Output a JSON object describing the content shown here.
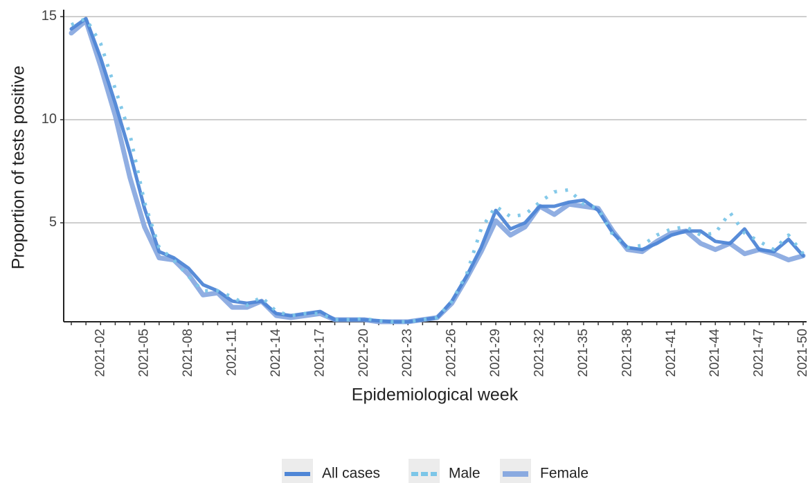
{
  "chart_data": {
    "type": "line",
    "x_label": "Epidemiological week",
    "y_label": "Proportion of tests positive",
    "categories": [
      null,
      null,
      "2021-02",
      null,
      null,
      "2021-05",
      null,
      null,
      "2021-08",
      null,
      null,
      "2021-11",
      null,
      null,
      "2021-14",
      null,
      null,
      "2021-17",
      null,
      null,
      "2021-20",
      null,
      null,
      "2021-23",
      null,
      null,
      "2021-26",
      null,
      null,
      "2021-29",
      null,
      null,
      "2021-32",
      null,
      null,
      "2021-35",
      null,
      null,
      "2021-38",
      null,
      null,
      "2021-41",
      null,
      null,
      "2021-44",
      null,
      null,
      "2021-47",
      null,
      null,
      "2021-50"
    ],
    "series": [
      {
        "name": "All cases",
        "color": "#4f86d6",
        "linestyle": "solid",
        "values": [
          14.4,
          14.9,
          13.0,
          10.8,
          8.4,
          5.7,
          3.6,
          3.3,
          2.8,
          2.0,
          1.7,
          1.2,
          1.1,
          1.2,
          0.6,
          0.5,
          0.6,
          0.7,
          0.3,
          0.3,
          0.3,
          0.25,
          0.2,
          0.2,
          0.3,
          0.4,
          1.2,
          2.4,
          3.8,
          5.6,
          4.7,
          5.0,
          5.8,
          5.8,
          6.0,
          6.1,
          5.6,
          4.5,
          3.8,
          3.7,
          4.0,
          4.4,
          4.6,
          4.6,
          4.1,
          4.0,
          4.7,
          3.7,
          3.6,
          4.2,
          3.4
        ]
      },
      {
        "name": "Male",
        "color": "#7cc6e8",
        "linestyle": "dotted",
        "values": [
          14.6,
          14.9,
          13.7,
          11.5,
          9.3,
          6.0,
          3.8,
          3.2,
          2.4,
          1.7,
          1.7,
          1.4,
          1.0,
          1.4,
          0.7,
          0.5,
          0.6,
          0.6,
          0.3,
          0.3,
          0.35,
          0.25,
          0.2,
          0.2,
          0.3,
          0.4,
          1.2,
          2.5,
          4.7,
          5.8,
          5.3,
          5.4,
          6.0,
          6.5,
          6.6,
          5.9,
          5.7,
          4.4,
          3.8,
          3.9,
          4.4,
          4.7,
          4.8,
          4.4,
          4.5,
          5.5,
          4.5,
          4.1,
          3.7,
          4.4,
          3.5
        ]
      },
      {
        "name": "Female",
        "color": "#8aaae0",
        "linestyle": "solid",
        "values": [
          14.2,
          14.8,
          12.6,
          10.2,
          7.2,
          4.8,
          3.3,
          3.2,
          2.5,
          1.5,
          1.6,
          0.9,
          0.9,
          1.2,
          0.5,
          0.4,
          0.5,
          0.6,
          0.3,
          0.3,
          0.3,
          0.2,
          0.2,
          0.2,
          0.3,
          0.4,
          1.1,
          2.3,
          3.6,
          5.1,
          4.4,
          4.8,
          5.8,
          5.4,
          5.9,
          5.8,
          5.7,
          4.6,
          3.7,
          3.6,
          4.1,
          4.5,
          4.6,
          4.0,
          3.7,
          4.0,
          3.5,
          3.7,
          3.5,
          3.2,
          3.4
        ]
      }
    ],
    "ylim": [
      0.2,
      15.2
    ],
    "yticks": [
      5,
      10,
      15
    ],
    "grid": true,
    "legend": "bottom"
  }
}
